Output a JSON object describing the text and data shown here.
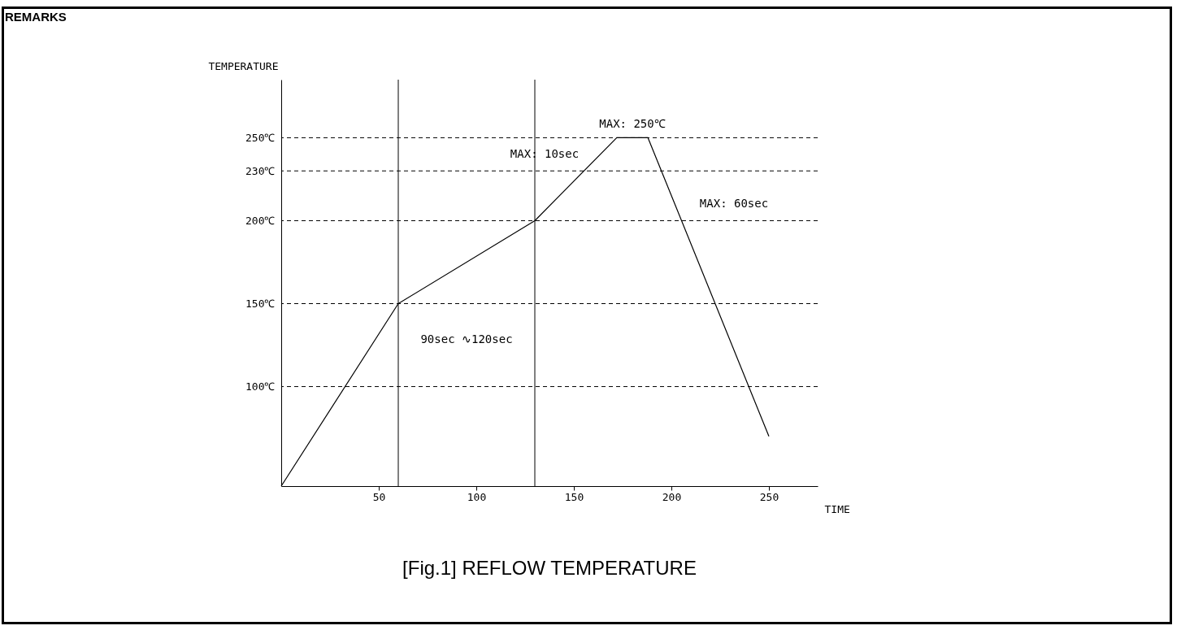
{
  "chart_data": {
    "type": "line",
    "title": "[Fig.1] REFLOW TEMPERATURE",
    "xlabel": "TIME",
    "ylabel": "TEMPERATURE",
    "x": [
      0,
      60,
      130,
      172,
      188,
      250
    ],
    "series": [
      {
        "color": "#000000",
        "values": [
          40,
          150,
          200,
          250,
          250,
          70
        ]
      }
    ],
    "xlim": [
      0,
      275
    ],
    "ylim": [
      40,
      285
    ],
    "xticks": [
      50,
      100,
      150,
      200,
      250
    ],
    "yticks": [
      {
        "value": 100,
        "label": "100℃"
      },
      {
        "value": 150,
        "label": "150℃"
      },
      {
        "value": 200,
        "label": "200℃"
      },
      {
        "value": 230,
        "label": "230℃"
      },
      {
        "value": 250,
        "label": "250℃"
      }
    ],
    "ref_lines": [
      {
        "axis": "y",
        "value": 250,
        "line_style": "dashed"
      },
      {
        "axis": "y",
        "value": 230,
        "line_style": "dashed"
      },
      {
        "axis": "y",
        "value": 200,
        "line_style": "dashed"
      },
      {
        "axis": "y",
        "value": 150,
        "line_style": "dashed"
      },
      {
        "axis": "y",
        "value": 100,
        "line_style": "dashed"
      },
      {
        "axis": "x",
        "value": 60,
        "line_style": "solid"
      },
      {
        "axis": "x",
        "value": 130,
        "line_style": "solid"
      }
    ],
    "annotations": [
      "REMARKS",
      "MAX: 250℃",
      "MAX: 10sec",
      "MAX: 60sec",
      "90sec ∿120sec"
    ]
  }
}
